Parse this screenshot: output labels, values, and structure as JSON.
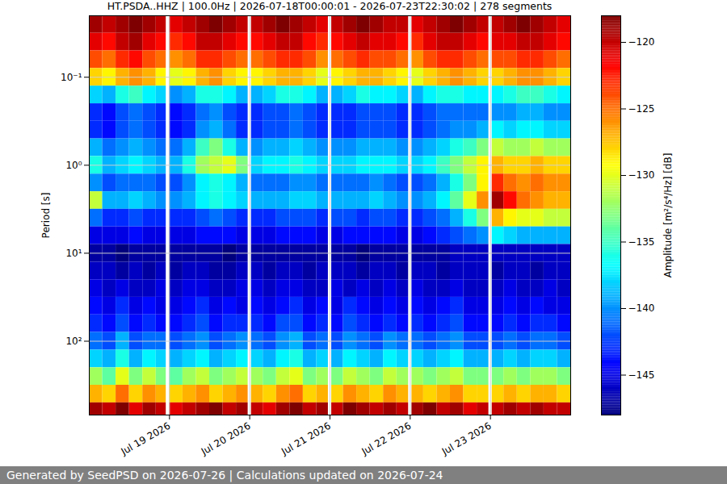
{
  "chart_data": {
    "type": "heatmap",
    "title": "HT.PSDA..HHZ | 100.0Hz | 2026-07-18T00:00:01 - 2026-07-23T22:30:02 | 278 segments",
    "y_label": "Period [s]",
    "footer": "Generated by SeedPSD on 2026-07-26 | Calculations updated on 2026-07-24",
    "log": "y",
    "grid": true,
    "xlim": [
      "2026-07-18T00:00",
      "2026-07-24T00:00"
    ],
    "ylim": [
      0.02,
      690
    ],
    "xticks": [
      {
        "value": "2026-07-19T00:00",
        "label": "Jul 19 2026"
      },
      {
        "value": "2026-07-20T00:00",
        "label": "Jul 20 2026"
      },
      {
        "value": "2026-07-21T00:00",
        "label": "Jul 21 2026"
      },
      {
        "value": "2026-07-22T00:00",
        "label": "Jul 22 2026"
      },
      {
        "value": "2026-07-23T00:00",
        "label": "Jul 23 2026"
      }
    ],
    "yticks": [
      {
        "value": 0.1,
        "label": "10⁻¹"
      },
      {
        "value": 1,
        "label": "10⁰"
      },
      {
        "value": 10,
        "label": "10¹"
      },
      {
        "value": 100,
        "label": "10²"
      }
    ],
    "time_edges": [
      "2026-07-18T00:00",
      "2026-07-18T04:00",
      "2026-07-18T08:00",
      "2026-07-18T12:00",
      "2026-07-18T16:00",
      "2026-07-18T20:00",
      "2026-07-18T23:00",
      "2026-07-19T00:00",
      "2026-07-19T04:00",
      "2026-07-19T08:00",
      "2026-07-19T12:00",
      "2026-07-19T16:00",
      "2026-07-19T20:00",
      "2026-07-19T23:30",
      "2026-07-20T00:30",
      "2026-07-20T04:00",
      "2026-07-20T08:00",
      "2026-07-20T12:00",
      "2026-07-20T16:00",
      "2026-07-20T20:00",
      "2026-07-20T23:30",
      "2026-07-21T00:30",
      "2026-07-21T04:00",
      "2026-07-21T08:00",
      "2026-07-21T12:00",
      "2026-07-21T16:00",
      "2026-07-21T20:00",
      "2026-07-21T23:30",
      "2026-07-22T00:30",
      "2026-07-22T04:00",
      "2026-07-22T08:00",
      "2026-07-22T12:00",
      "2026-07-22T16:00",
      "2026-07-22T20:00",
      "2026-07-22T23:30",
      "2026-07-23T00:30",
      "2026-07-23T04:00",
      "2026-07-23T08:00",
      "2026-07-23T12:00",
      "2026-07-23T16:00",
      "2026-07-23T20:00",
      "2026-07-24T00:00"
    ],
    "period_edges": [
      0.02,
      0.0316,
      0.0501,
      0.0794,
      0.126,
      0.2,
      0.316,
      0.501,
      0.794,
      1.26,
      2,
      3.16,
      5.01,
      7.94,
      12.6,
      20,
      31.6,
      50.1,
      79.4,
      126,
      200,
      316,
      501,
      794
    ],
    "values": [
      [
        -119,
        -120,
        -119,
        -118,
        -119,
        -120,
        null,
        -121,
        -120,
        -119,
        -118,
        -119,
        -120,
        null,
        -120,
        -119,
        -118,
        -119,
        -120,
        -121,
        null,
        -120,
        -119,
        -118,
        -119,
        -120,
        -120,
        null,
        -121,
        -120,
        -119,
        -118,
        -119,
        -120,
        null,
        -120,
        -119,
        -118,
        -119,
        -120,
        -121
      ],
      [
        -121,
        -122,
        -120,
        -119,
        -121,
        -122,
        null,
        -123,
        -122,
        -120,
        -120,
        -121,
        -122,
        null,
        -122,
        -121,
        -120,
        -120,
        -122,
        -123,
        null,
        -122,
        -121,
        -120,
        -121,
        -121,
        -122,
        null,
        -123,
        -121,
        -120,
        -120,
        -121,
        -122,
        null,
        -121,
        -121,
        -120,
        -120,
        -121,
        -122
      ],
      [
        -124,
        -125,
        -123,
        -122,
        -124,
        -125,
        null,
        -126,
        -125,
        -123,
        -123,
        -124,
        -125,
        null,
        -125,
        -124,
        -123,
        -123,
        -124,
        -126,
        null,
        -125,
        -124,
        -123,
        -124,
        -124,
        -125,
        null,
        -126,
        -124,
        -123,
        -123,
        -124,
        -125,
        null,
        -124,
        -124,
        -123,
        -123,
        -124,
        -125
      ],
      [
        -128,
        -129,
        -127,
        -126,
        -127,
        -129,
        null,
        -130,
        -129,
        -127,
        -126,
        -128,
        -129,
        null,
        -129,
        -128,
        -127,
        -127,
        -128,
        -130,
        null,
        -129,
        -128,
        -127,
        -127,
        -128,
        -129,
        null,
        -130,
        -128,
        -127,
        -126,
        -127,
        -128,
        null,
        -128,
        -127,
        -126,
        -126,
        -127,
        -128
      ],
      [
        -138,
        -139,
        -136,
        -135,
        -137,
        -138,
        null,
        -140,
        -139,
        -136,
        -136,
        -137,
        -139,
        null,
        -139,
        -138,
        -136,
        -136,
        -137,
        -139,
        null,
        -139,
        -138,
        -136,
        -137,
        -137,
        -138,
        null,
        -139,
        -137,
        -136,
        -136,
        -137,
        -137,
        null,
        -137,
        -136,
        -135,
        -135,
        -136,
        -137
      ],
      [
        -143,
        -144,
        -142,
        -141,
        -142,
        -143,
        null,
        -144,
        -143,
        -141,
        -140,
        -142,
        -143,
        null,
        -143,
        -142,
        -142,
        -141,
        -142,
        -143,
        null,
        -143,
        -143,
        -142,
        -142,
        -142,
        -143,
        null,
        -143,
        -142,
        -141,
        -141,
        -141,
        -141,
        null,
        -140,
        -140,
        -139,
        -139,
        -140,
        -140
      ],
      [
        -143,
        -144,
        -142,
        -141,
        -142,
        -143,
        null,
        -144,
        -143,
        -140,
        -139,
        -141,
        -143,
        null,
        -143,
        -142,
        -142,
        -141,
        -142,
        -143,
        null,
        -143,
        -143,
        -142,
        -142,
        -142,
        -143,
        null,
        -143,
        -142,
        -141,
        -140,
        -140,
        -139,
        null,
        -137,
        -138,
        -137,
        -137,
        -138,
        -138
      ],
      [
        -139,
        -141,
        -140,
        -139,
        -140,
        -141,
        null,
        -141,
        -139,
        -135,
        -133,
        -136,
        -139,
        null,
        -140,
        -139,
        -139,
        -138,
        -139,
        -140,
        null,
        -140,
        -140,
        -139,
        -139,
        -139,
        -140,
        null,
        -140,
        -139,
        -138,
        -136,
        -135,
        -133,
        null,
        -131,
        -132,
        -132,
        -131,
        -132,
        -132
      ],
      [
        -136,
        -139,
        -138,
        -137,
        -138,
        -139,
        null,
        -139,
        -136,
        -132,
        -131,
        -130,
        -133,
        null,
        -138,
        -137,
        -137,
        -136,
        -137,
        -138,
        null,
        -138,
        -138,
        -137,
        -137,
        -137,
        -138,
        null,
        -138,
        -137,
        -135,
        -133,
        -131,
        -129,
        null,
        -127,
        -128,
        -128,
        -127,
        -128,
        -128
      ],
      [
        -140,
        -142,
        -141,
        -141,
        -141,
        -142,
        null,
        -142,
        -140,
        -137,
        -136,
        -137,
        -139,
        null,
        -141,
        -141,
        -141,
        -140,
        -140,
        -141,
        null,
        -141,
        -141,
        -141,
        -140,
        -141,
        -142,
        null,
        -142,
        -141,
        -139,
        -136,
        -133,
        -129,
        null,
        -123,
        -125,
        -126,
        -125,
        -126,
        -126
      ],
      [
        -131,
        -139,
        -139,
        -138,
        -139,
        -140,
        null,
        -140,
        -139,
        -137,
        -136,
        -137,
        -138,
        null,
        -139,
        -139,
        -139,
        -138,
        -138,
        -139,
        null,
        -139,
        -139,
        -139,
        -138,
        -139,
        -140,
        null,
        -140,
        -139,
        -137,
        -134,
        -130,
        -126,
        null,
        -119,
        -122,
        -125,
        -126,
        -127,
        -127
      ],
      [
        -141,
        -143,
        -143,
        -142,
        -143,
        -143,
        null,
        -143,
        -143,
        -142,
        -141,
        -142,
        -143,
        null,
        -143,
        -143,
        -142,
        -142,
        -142,
        -143,
        null,
        -142,
        -142,
        -143,
        -142,
        -142,
        -143,
        null,
        -143,
        -142,
        -141,
        -139,
        -136,
        -133,
        null,
        -127,
        -129,
        -130,
        -130,
        -131,
        -131
      ],
      [
        -145,
        -145,
        -145,
        -144,
        -145,
        -145,
        null,
        -145,
        -145,
        -144,
        -144,
        -144,
        -145,
        null,
        -145,
        -145,
        -144,
        -144,
        -144,
        -145,
        null,
        -145,
        -144,
        -144,
        -144,
        -144,
        -145,
        null,
        -145,
        -144,
        -143,
        -142,
        -141,
        -140,
        null,
        -137,
        -138,
        -139,
        -139,
        -139,
        -139
      ],
      [
        -147,
        -147,
        -148,
        -147,
        -147,
        -147,
        null,
        -147,
        -147,
        -147,
        -147,
        -148,
        -147,
        null,
        -147,
        -147,
        -147,
        -147,
        -147,
        -147,
        null,
        -147,
        -147,
        -148,
        -147,
        -147,
        -147,
        null,
        -147,
        -147,
        -147,
        -146,
        -146,
        -146,
        null,
        -146,
        -146,
        -146,
        -146,
        -146,
        -146
      ],
      [
        -146,
        -146,
        -147,
        -146,
        -147,
        -146,
        null,
        -147,
        -146,
        -146,
        -147,
        -147,
        -146,
        null,
        -146,
        -147,
        -146,
        -146,
        -147,
        -146,
        null,
        -146,
        -146,
        -147,
        -146,
        -146,
        -147,
        null,
        -146,
        -146,
        -147,
        -146,
        -146,
        -146,
        null,
        -147,
        -146,
        -146,
        -147,
        -146,
        -146
      ],
      [
        -145,
        -146,
        -145,
        -146,
        -146,
        -145,
        null,
        -146,
        -145,
        -145,
        -146,
        -146,
        -145,
        null,
        -145,
        -146,
        -145,
        -145,
        -146,
        -146,
        null,
        -145,
        -146,
        -145,
        -146,
        -145,
        -146,
        null,
        -145,
        -146,
        -146,
        -145,
        -146,
        -146,
        null,
        -146,
        -145,
        -146,
        -146,
        -145,
        -146
      ],
      [
        -144,
        -145,
        -143,
        -145,
        -144,
        -145,
        null,
        -145,
        -144,
        -143,
        -145,
        -144,
        -145,
        null,
        -144,
        -145,
        -144,
        -143,
        -145,
        -144,
        null,
        -145,
        -143,
        -144,
        -145,
        -144,
        -145,
        null,
        -144,
        -145,
        -144,
        -143,
        -145,
        -145,
        null,
        -145,
        -144,
        -145,
        -144,
        -145,
        -145
      ],
      [
        -143,
        -144,
        -142,
        -144,
        -143,
        -144,
        null,
        -144,
        -143,
        -142,
        -144,
        -143,
        -143,
        null,
        -143,
        -144,
        -142,
        -142,
        -144,
        -143,
        null,
        -144,
        -142,
        -143,
        -144,
        -143,
        -144,
        null,
        -143,
        -144,
        -143,
        -142,
        -144,
        -144,
        null,
        -144,
        -143,
        -144,
        -143,
        -143,
        -144
      ],
      [
        -141,
        -142,
        -139,
        -142,
        -141,
        -141,
        null,
        -142,
        -141,
        -140,
        -142,
        -141,
        -140,
        null,
        -141,
        -142,
        -140,
        -139,
        -142,
        -141,
        null,
        -142,
        -140,
        -141,
        -142,
        -140,
        -141,
        null,
        -141,
        -142,
        -141,
        -140,
        -142,
        -142,
        null,
        -142,
        -141,
        -142,
        -141,
        -141,
        -142
      ],
      [
        -138,
        -139,
        -136,
        -139,
        -137,
        -138,
        null,
        -139,
        -138,
        -137,
        -139,
        -138,
        -137,
        null,
        -138,
        -139,
        -137,
        -136,
        -139,
        -138,
        null,
        -139,
        -137,
        -138,
        -139,
        -137,
        -138,
        null,
        -138,
        -139,
        -138,
        -137,
        -139,
        -139,
        null,
        -139,
        -138,
        -139,
        -138,
        -138,
        -139
      ],
      [
        -132,
        -134,
        -130,
        -133,
        -131,
        -133,
        null,
        -134,
        -132,
        -131,
        -133,
        -132,
        -131,
        null,
        -132,
        -133,
        -131,
        -130,
        -133,
        -132,
        null,
        -133,
        -131,
        -132,
        -133,
        -131,
        -132,
        null,
        -132,
        -133,
        -132,
        -131,
        -133,
        -133,
        null,
        -133,
        -132,
        -133,
        -132,
        -132,
        -133
      ],
      [
        -127,
        -128,
        -125,
        -128,
        -126,
        -127,
        null,
        -128,
        -127,
        -126,
        -128,
        -127,
        -126,
        null,
        -127,
        -128,
        -126,
        -125,
        -128,
        -127,
        null,
        -128,
        -126,
        -127,
        -128,
        -126,
        -127,
        null,
        -127,
        -128,
        -127,
        -126,
        -128,
        -128,
        null,
        -128,
        -127,
        -128,
        -127,
        -127,
        -128
      ],
      [
        -119,
        -120,
        -118,
        -121,
        -119,
        -120,
        null,
        -121,
        -120,
        -119,
        -118,
        -120,
        -119,
        null,
        -120,
        -121,
        -119,
        -118,
        -120,
        -119,
        null,
        -120,
        -118,
        -119,
        -120,
        -119,
        -120,
        null,
        -119,
        -118,
        -120,
        -119,
        -121,
        -120,
        null,
        -120,
        -119,
        -120,
        -119,
        -120,
        -120
      ]
    ],
    "colorbar": {
      "label": "Amplitude [m²/s⁴/Hz] [dB]",
      "range": [
        -148,
        -118
      ],
      "ticks": [
        -145,
        -140,
        -135,
        -130,
        -125,
        -120
      ]
    }
  }
}
